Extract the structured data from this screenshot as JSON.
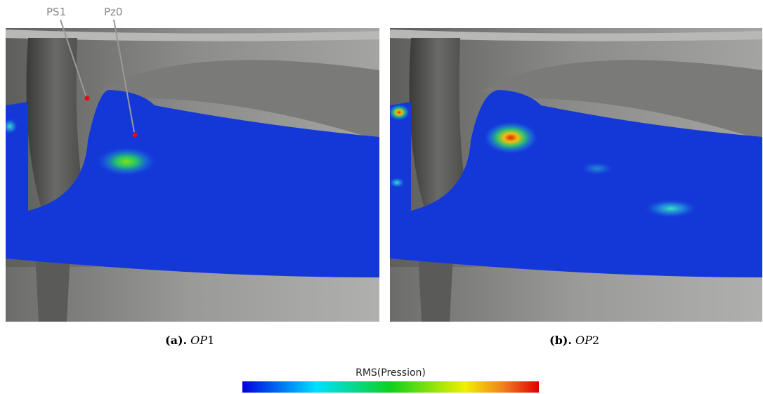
{
  "annotations": [
    "PS1",
    "Pz0"
  ],
  "captions": [
    {
      "label": "(a).",
      "name": "OP",
      "number": "1"
    },
    {
      "label": "(b).",
      "name": "OP",
      "number": "2"
    }
  ],
  "colorbar": {
    "title": "RMS(Pression)"
  }
}
